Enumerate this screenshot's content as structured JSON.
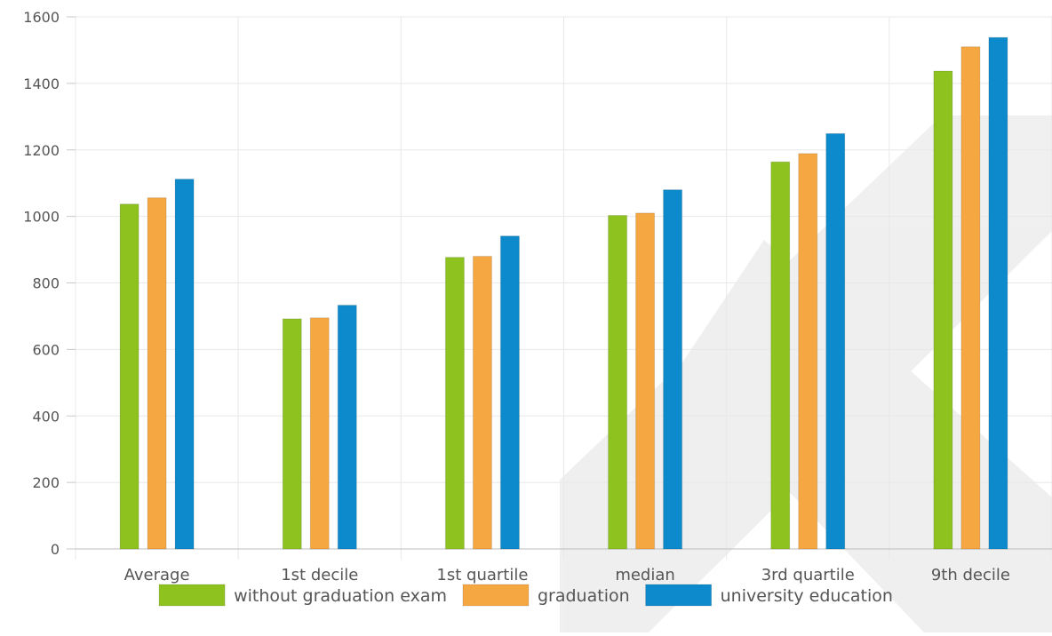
{
  "chart_data": {
    "type": "bar",
    "title": "",
    "xlabel": "",
    "ylabel": "",
    "categories": [
      "Average",
      "1st decile",
      "1st quartile",
      "median",
      "3rd quartile",
      "9th decile"
    ],
    "series": [
      {
        "name": "without graduation exam",
        "color": "#8dc21f",
        "values": [
          1037,
          692,
          877,
          1003,
          1164,
          1437
        ]
      },
      {
        "name": "graduation",
        "color": "#f5a742",
        "values": [
          1056,
          695,
          880,
          1010,
          1189,
          1510
        ]
      },
      {
        "name": "university education",
        "color": "#0d8acb",
        "values": [
          1112,
          733,
          941,
          1080,
          1249,
          1538
        ]
      }
    ],
    "ylim": [
      0,
      1600
    ],
    "yticks": [
      0,
      200,
      400,
      600,
      800,
      1000,
      1200,
      1400,
      1600
    ],
    "grid": true,
    "legend": "bottom-center"
  }
}
